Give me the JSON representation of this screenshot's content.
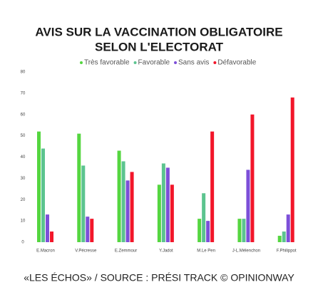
{
  "chart_data": {
    "type": "bar",
    "title": "AVIS SUR LA VACCINATION OBLIGATOIRE",
    "subtitle": "SELON L'ELECTORAT",
    "source": "«LES ÉCHOS» / SOURCE : PRÉSI TRACK © OPINIONWAY",
    "categories": [
      "E.Macron",
      "V.Pécresse",
      "E.Zemmour",
      "Y.Jadot",
      "M.Le Pen",
      "J-L.Mélenchon",
      "F.Philippot"
    ],
    "series": [
      {
        "name": "Très favorable",
        "color": "#55d640",
        "values": [
          52,
          51,
          43,
          27,
          11,
          11,
          3
        ]
      },
      {
        "name": "Favorable",
        "color": "#5cc48f",
        "values": [
          44,
          36,
          38,
          37,
          23,
          11,
          5
        ]
      },
      {
        "name": "Sans avis",
        "color": "#7d4fd8",
        "values": [
          13,
          12,
          29,
          35,
          10,
          34,
          13
        ]
      },
      {
        "name": "Défavorable",
        "color": "#f2162a",
        "values": [
          5,
          11,
          33,
          27,
          52,
          60,
          68
        ]
      }
    ],
    "ylim": [
      0,
      80
    ],
    "yticks": [
      0,
      10,
      20,
      30,
      40,
      50,
      60,
      70,
      80
    ]
  }
}
